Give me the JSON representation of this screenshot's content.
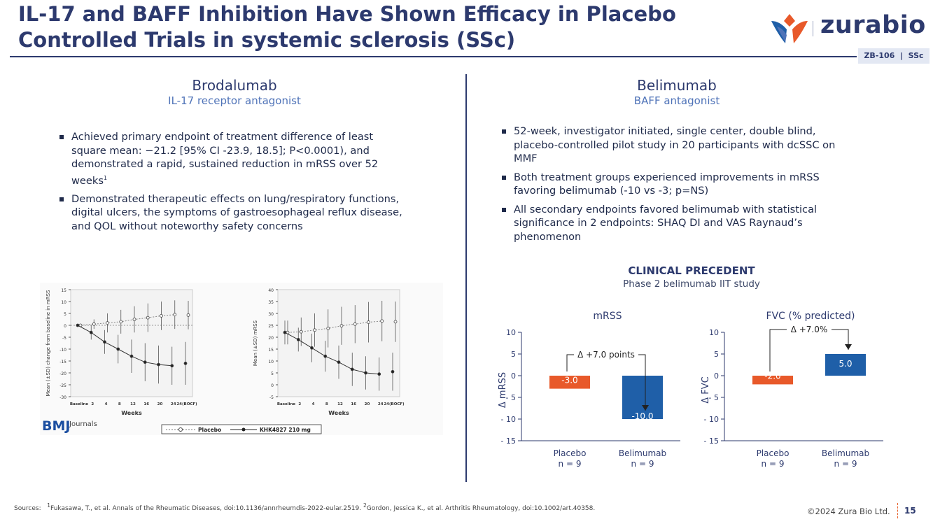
{
  "header": {
    "title": "IL-17 and BAFF Inhibition Have Shown Efficacy in Placebo Controlled Trials in systemic sclerosis (SSc)",
    "tag": "ZB-106  |  SSc",
    "logo_text": "zurabio"
  },
  "colors": {
    "navy": "#2d3a6e",
    "placebo": "#e8592a",
    "belimumab": "#1f5fa8",
    "accent": "#4f73b8"
  },
  "left": {
    "drug": "Brodalumab",
    "moa": "IL-17 receptor antagonist",
    "bullets": [
      "Achieved primary endpoint of treatment difference of least square mean: −21.2 [95% CI -23.9, 18.5]; P<0.0001), and demonstrated a rapid, sustained reduction in mRSS over 52 weeks",
      "Demonstrated therapeutic effects on lung/respiratory functions, digital ulcers, the symptoms of gastroesophageal reflux disease, and QOL without noteworthy safety concerns"
    ],
    "bullet1_sup": "1",
    "figure": {
      "bmj": "BMJ",
      "journals": "Journals",
      "legend_placebo": "Placebo",
      "legend_drug": "KHK4827 210 mg",
      "x_label": "Weeks",
      "x_ticks": [
        "Baseline",
        "2",
        "4",
        "8",
        "12",
        "16",
        "20",
        "24",
        "24(BOCF)"
      ],
      "left_ylabel": "Mean (±SD) change from baseline in mRSS",
      "left_yticks": [
        "15",
        "10",
        "5",
        "0",
        "-5",
        "-10",
        "-15",
        "-20",
        "-25",
        "-30"
      ],
      "right_ylabel": "Mean (±SD) mRSS",
      "right_yticks": [
        "40",
        "35",
        "30",
        "25",
        "20",
        "15",
        "10",
        "5",
        "0",
        "-5"
      ],
      "change_placebo": [
        0,
        0.5,
        1,
        1.5,
        2.5,
        3.2,
        4,
        4.5,
        4.3
      ],
      "change_drug": [
        0,
        -3,
        -7,
        -10,
        -13,
        -15.5,
        -16.5,
        -17,
        -16
      ],
      "change_sd_placebo": [
        0,
        2,
        4,
        5,
        5.5,
        6,
        6,
        6,
        6
      ],
      "change_sd_drug": [
        0,
        3,
        5,
        6,
        7,
        8,
        8,
        8,
        9
      ],
      "mrss_placebo": [
        22,
        22.3,
        23,
        23.7,
        24.8,
        25.5,
        26.3,
        26.8,
        26.5
      ],
      "mrss_drug": [
        22,
        19,
        15.5,
        12,
        9.5,
        6.5,
        5,
        4.5,
        5.5
      ],
      "mrss_sd_placebo": [
        5,
        6,
        7,
        8,
        8,
        8,
        8.5,
        8.5,
        8.5
      ],
      "mrss_sd_drug": [
        5,
        5,
        6,
        6.5,
        7,
        7,
        7,
        7,
        8
      ]
    }
  },
  "right": {
    "drug": "Belimumab",
    "moa": "BAFF antagonist",
    "bullets": [
      "52-week, investigator initiated, single center, double blind, placebo-controlled pilot study in 20 participants with dcSSC on MMF",
      "Both treatment groups experienced improvements in mRSS favoring belimumab (-10 vs -3; p=NS)",
      "All secondary endpoints favored belimumab with statistical significance in 2 endpoints: SHAQ DI and VAS Raynaud’s phenomenon"
    ],
    "precedent_title": "CLINICAL PRECEDENT",
    "precedent_sub": "Phase 2 belimumab IIT study"
  },
  "chart_data": [
    {
      "type": "bar",
      "title": "mRSS",
      "ylabel": "Δ mRSS",
      "ylim": [
        -15,
        10
      ],
      "yticks": [
        "10",
        "5",
        "0",
        "- 5",
        "- 10",
        "- 15"
      ],
      "categories": [
        "Placebo",
        "Belimumab"
      ],
      "category_n": [
        "n = 9",
        "n = 9"
      ],
      "values": [
        -3.0,
        -10.0
      ],
      "value_labels": [
        "-3.0",
        "-10.0"
      ],
      "annotation": "Δ +7.0 points"
    },
    {
      "type": "bar",
      "title": "FVC (% predicted)",
      "ylabel": "Δ FVC",
      "ylim": [
        -15,
        10
      ],
      "yticks": [
        "10",
        "5",
        "0",
        "- 5",
        "- 10",
        "- 15"
      ],
      "categories": [
        "Placebo",
        "Belimumab"
      ],
      "category_n": [
        "n = 9",
        "n = 9"
      ],
      "values": [
        -2.0,
        5.0
      ],
      "value_labels": [
        "-2.0",
        "5.0"
      ],
      "annotation": "Δ +7.0%"
    }
  ],
  "footer": {
    "sources_label": "Sources:",
    "source1_sup": "1",
    "source1": "Fukasawa, T., et al. Annals of the Rheumatic Diseases, doi:10.1136/annrheumdis-2022-eular.2519.",
    "source2_sup": "2",
    "source2": "Gordon, Jessica K., et al. Arthritis Rheumatology, doi:10.1002/art.40358.",
    "copyright": "©2024 Zura Bio Ltd.",
    "page": "15"
  }
}
